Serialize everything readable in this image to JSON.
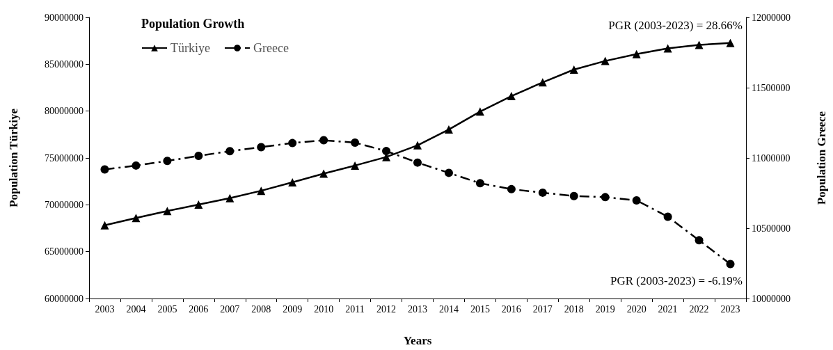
{
  "chart_data": {
    "type": "line",
    "title": "Population Growth",
    "xlabel": "Years",
    "ylabel": "Population Türkiye",
    "y2label": "Population Greece",
    "categories": [
      "2003",
      "2004",
      "2005",
      "2006",
      "2007",
      "2008",
      "2009",
      "2010",
      "2011",
      "2012",
      "2013",
      "2014",
      "2015",
      "2016",
      "2017",
      "2018",
      "2019",
      "2020",
      "2021",
      "2022",
      "2023"
    ],
    "series": [
      {
        "name": "Türkiye",
        "color": "#000000",
        "marker": "triangle",
        "line_style": "solid",
        "values": [
          67820000,
          68600000,
          69340000,
          70020000,
          70710000,
          71500000,
          72400000,
          73330000,
          74190000,
          75100000,
          76350000,
          78040000,
          79950000,
          81600000,
          83070000,
          84430000,
          85350000,
          86080000,
          86690000,
          87060000,
          87280000
        ]
      },
      {
        "name": "Greece",
        "color": "#000000",
        "marker": "circle",
        "line_style": "dashed",
        "axis": "y2",
        "values": [
          10918000,
          10946000,
          10979000,
          11015000,
          11048000,
          11077000,
          11106000,
          11126000,
          11109000,
          11049000,
          10967000,
          10894000,
          10820000,
          10778000,
          10753000,
          10729000,
          10721000,
          10698000,
          10582000,
          10414000,
          10245000
        ]
      }
    ],
    "ylim": [
      60000000,
      90000000
    ],
    "yticks": [
      60000000,
      65000000,
      70000000,
      75000000,
      80000000,
      85000000,
      90000000
    ],
    "y2lim": [
      10000000,
      12000000
    ],
    "y2ticks": [
      10000000,
      10500000,
      11000000,
      11500000,
      12000000
    ],
    "grid": false,
    "legend": "top left",
    "annotations": [
      "PGR (2003-2023) = 28.66%",
      "PGR (2003-2023) = -6.19%"
    ]
  }
}
